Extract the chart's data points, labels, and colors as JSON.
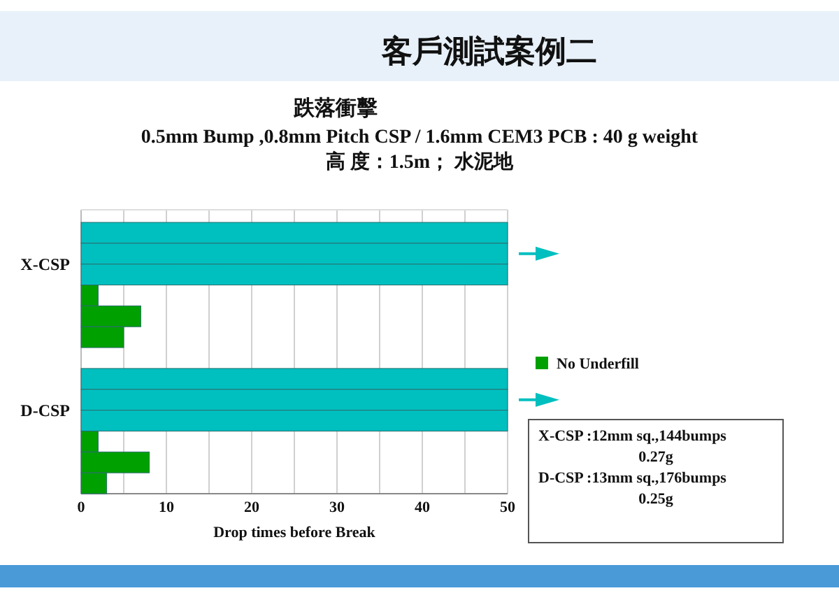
{
  "chart_data": {
    "type": "bar",
    "orientation": "horizontal",
    "title": "跌落衝擊",
    "subtitle": "0.5mm Bump ,0.8mm Pitch CSP / 1.6mm CEM3 PCB : 40 g weight\n高 度：1.5m； 水泥地",
    "xlabel": "Drop times before Break",
    "categories": [
      null,
      "X-CSP",
      null,
      null,
      null,
      null,
      null,
      null,
      "D-CSP",
      null,
      null,
      null,
      null
    ],
    "series": [
      {
        "color": "#00bfbf",
        "values": [
          50,
          50,
          50,
          null,
          null,
          null,
          null,
          50,
          50,
          50,
          null,
          null,
          null
        ]
      },
      {
        "name": "No Underfill",
        "color": "#00a000",
        "values": [
          null,
          null,
          null,
          2,
          7,
          5,
          null,
          null,
          null,
          null,
          2,
          8,
          3
        ]
      }
    ],
    "xlim": [
      0,
      50
    ],
    "xticks": [
      0,
      {
        "value": 5,
        "label": null
      },
      10,
      {
        "value": 15,
        "label": null
      },
      20,
      {
        "value": 25,
        "label": null
      },
      30,
      {
        "value": 35,
        "label": null
      },
      40,
      {
        "value": 45,
        "label": null
      },
      50
    ],
    "grid": "x",
    "legend": "right",
    "annotations": [
      "客戶測試案例二",
      "X-CSP :12mm sq.,144bumps",
      "0.27g",
      "D-CSP :13mm sq.,176bumps",
      "0.25g"
    ]
  }
}
